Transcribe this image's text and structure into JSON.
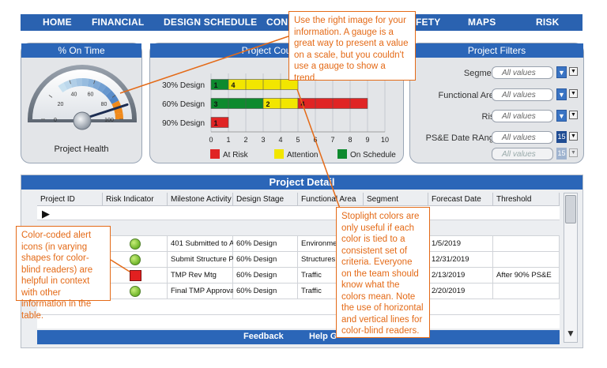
{
  "nav": {
    "items": [
      "HOME",
      "FINANCIAL",
      "DESIGN SCHEDULE",
      "CONSTRUCTION",
      "SAFETY",
      "MAPS",
      "RISK"
    ],
    "visible": [
      "HOME",
      "FINANCIAL",
      "DESIGN SCHEDULE",
      "CON",
      "FETY",
      "MAPS",
      "RISK"
    ]
  },
  "gauge_panel": {
    "title": "% On Time",
    "label": "Project Health",
    "ticks": [
      "0",
      "20",
      "40",
      "60",
      "80",
      "100"
    ],
    "value_percent": 90
  },
  "count_panel": {
    "title_visible": "Project Count by",
    "chart_data": {
      "type": "bar",
      "stacked": true,
      "orientation": "horizontal",
      "categories": [
        "30% Design",
        "60% Design",
        "90% Design"
      ],
      "series": [
        {
          "name": "At Risk",
          "color": "#e02424",
          "values": [
            0,
            4,
            1
          ]
        },
        {
          "name": "Attention",
          "color": "#f2e600",
          "values": [
            4,
            2,
            0
          ]
        },
        {
          "name": "On Schedule",
          "color": "#0e8a2e",
          "values": [
            1,
            3,
            0
          ]
        }
      ],
      "series_order": [
        "On Schedule",
        "Attention",
        "At Risk"
      ],
      "xlim": [
        0,
        10
      ],
      "xticks": [
        "0",
        "1",
        "2",
        "3",
        "4",
        "5",
        "6",
        "7",
        "8",
        "9",
        "10"
      ],
      "legend_position": "bottom"
    },
    "legend": [
      "At Risk",
      "Attention",
      "On Schedule"
    ]
  },
  "filters": {
    "title": "Project Filters",
    "rows": [
      {
        "label": "Segment:",
        "value": "All values"
      },
      {
        "label": "Functional Area:",
        "value": "All values"
      },
      {
        "label": "Risk:",
        "value": "All values"
      },
      {
        "label": "PS&E Date RAnge:",
        "value": "All values",
        "number": "15"
      },
      {
        "label": "",
        "value": "All values",
        "number": "15",
        "disabled": true
      }
    ]
  },
  "detail": {
    "title": "Project Detail",
    "columns": [
      "Project ID",
      "Risk Indicator",
      "Milestone Activity",
      "Design Stage",
      "Functional Area",
      "Segment",
      "Forecast Date",
      "Threshold"
    ],
    "rows": [
      {
        "indicator": "green",
        "milestone": "401 Submitted to Age",
        "stage": "60% Design",
        "area": "Environment",
        "segment": "",
        "date": "1/5/2019",
        "threshold": ""
      },
      {
        "indicator": "green",
        "milestone": "Submit Structure Plan",
        "stage": "60% Design",
        "area": "Structures",
        "segment": "",
        "date": "12/31/2019",
        "threshold": ""
      },
      {
        "indicator": "red",
        "milestone": "TMP Rev Mtg",
        "stage": "60% Design",
        "area": "Traffic",
        "segment": "",
        "date": "2/13/2019",
        "threshold": "After 90% PS&E"
      },
      {
        "indicator": "green",
        "milestone": "Final TMP Approval",
        "stage": "60% Design",
        "area": "Traffic",
        "segment": "",
        "date": "2/20/2019",
        "threshold": ""
      }
    ],
    "footer_links": [
      "Feedback",
      "Help G"
    ]
  },
  "callouts": {
    "gauge": "Use the right image for your information. A gauge is a great way to present a value on a scale, but you couldn't use a gauge to show a trend.",
    "stoplight": "Stoplight colors are only useful if each color is tied to a consistent set of criteria. Everyone on the team should know what the colors mean. Note the use of horizontal and vertical lines for color-blind readers.",
    "alert": "Color-coded alert icons (in varying shapes for color-blind readers) are helpful in context with other information in the table."
  },
  "colors": {
    "nav_blue": "#2a62b0",
    "callout_orange": "#e46a17"
  }
}
